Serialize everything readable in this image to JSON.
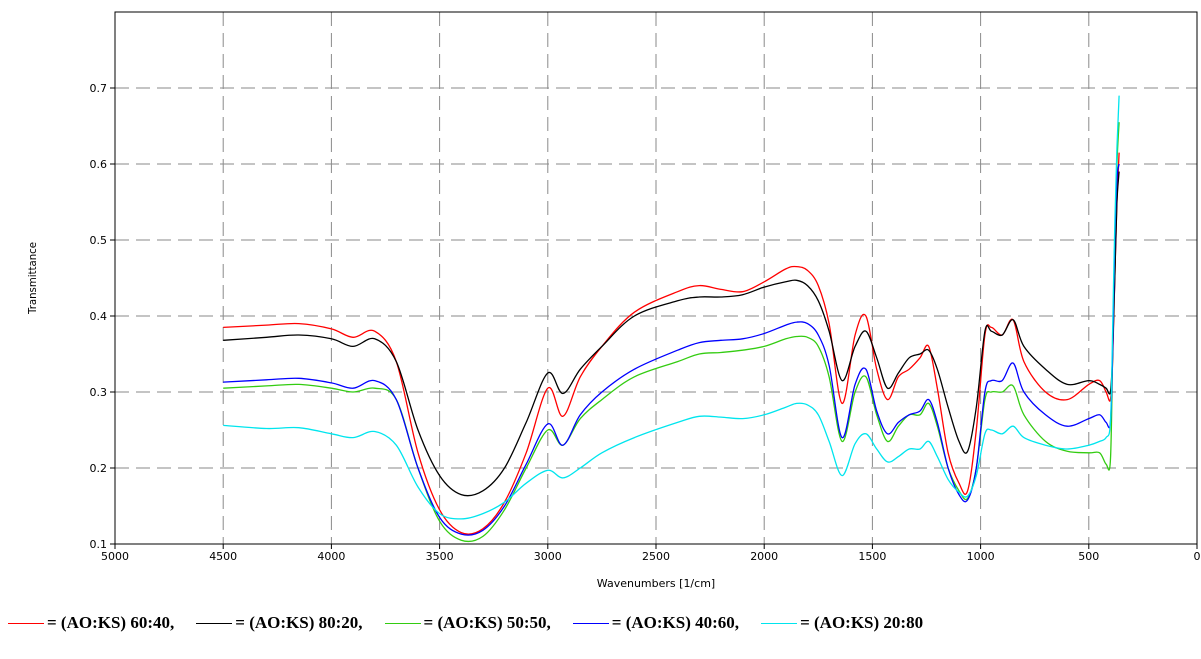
{
  "chart_data": {
    "type": "line",
    "xlabel": "Wavenumbers [1/cm]",
    "ylabel": "Transmittance",
    "xlim": [
      5000,
      0
    ],
    "ylim": [
      0.1,
      0.8
    ],
    "xticks": [
      "5000",
      "4500",
      "4000",
      "3500",
      "3000",
      "2500",
      "2000",
      "1500",
      "1000",
      "500",
      "0"
    ],
    "yticks": [
      "0.1",
      "0.2",
      "0.3",
      "0.4",
      "0.5",
      "0.6",
      "0.7"
    ],
    "grid": true,
    "legend_position": "bottom",
    "series": [
      {
        "name": "= (AO:KS) 60:40,",
        "color": "#ff0000",
        "x": [
          4500,
          4300,
          4150,
          4000,
          3900,
          3800,
          3700,
          3600,
          3500,
          3400,
          3300,
          3200,
          3100,
          3000,
          2930,
          2850,
          2750,
          2600,
          2400,
          2300,
          2200,
          2100,
          2000,
          1900,
          1850,
          1800,
          1750,
          1700,
          1640,
          1580,
          1530,
          1480,
          1430,
          1380,
          1330,
          1280,
          1240,
          1200,
          1150,
          1100,
          1060,
          1020,
          980,
          950,
          900,
          850,
          800,
          700,
          600,
          500,
          450,
          420,
          400,
          390,
          380,
          370,
          360
        ],
        "y": [
          0.385,
          0.388,
          0.39,
          0.383,
          0.372,
          0.38,
          0.34,
          0.22,
          0.145,
          0.115,
          0.12,
          0.155,
          0.22,
          0.305,
          0.268,
          0.32,
          0.36,
          0.405,
          0.432,
          0.44,
          0.435,
          0.432,
          0.445,
          0.462,
          0.465,
          0.46,
          0.44,
          0.39,
          0.285,
          0.375,
          0.4,
          0.33,
          0.29,
          0.32,
          0.33,
          0.345,
          0.36,
          0.305,
          0.22,
          0.18,
          0.17,
          0.25,
          0.375,
          0.385,
          0.375,
          0.395,
          0.34,
          0.3,
          0.29,
          0.31,
          0.315,
          0.3,
          0.29,
          0.34,
          0.45,
          0.55,
          0.615
        ]
      },
      {
        "name": "= (AO:KS) 80:20,",
        "color": "#000000",
        "x": [
          4500,
          4300,
          4150,
          4000,
          3900,
          3800,
          3700,
          3600,
          3500,
          3400,
          3300,
          3200,
          3100,
          3000,
          2930,
          2850,
          2750,
          2600,
          2400,
          2300,
          2200,
          2100,
          2000,
          1900,
          1850,
          1800,
          1750,
          1700,
          1640,
          1580,
          1530,
          1480,
          1430,
          1380,
          1330,
          1280,
          1240,
          1200,
          1150,
          1100,
          1060,
          1020,
          980,
          950,
          900,
          850,
          800,
          700,
          600,
          500,
          450,
          420,
          400,
          390,
          380,
          370,
          360
        ],
        "y": [
          0.368,
          0.372,
          0.375,
          0.37,
          0.36,
          0.37,
          0.34,
          0.25,
          0.19,
          0.165,
          0.17,
          0.2,
          0.26,
          0.325,
          0.298,
          0.33,
          0.36,
          0.4,
          0.42,
          0.425,
          0.425,
          0.428,
          0.438,
          0.445,
          0.447,
          0.44,
          0.42,
          0.38,
          0.315,
          0.36,
          0.38,
          0.345,
          0.305,
          0.325,
          0.345,
          0.35,
          0.355,
          0.33,
          0.28,
          0.235,
          0.222,
          0.28,
          0.38,
          0.38,
          0.375,
          0.395,
          0.36,
          0.33,
          0.31,
          0.315,
          0.31,
          0.305,
          0.3,
          0.35,
          0.45,
          0.55,
          0.59
        ]
      },
      {
        "name": "= (AO:KS) 50:50,",
        "color": "#33cc11",
        "x": [
          4500,
          4300,
          4150,
          4000,
          3900,
          3800,
          3700,
          3600,
          3500,
          3400,
          3300,
          3200,
          3100,
          3000,
          2930,
          2850,
          2750,
          2600,
          2400,
          2300,
          2200,
          2100,
          2000,
          1900,
          1850,
          1800,
          1750,
          1700,
          1640,
          1580,
          1530,
          1480,
          1430,
          1380,
          1330,
          1280,
          1240,
          1200,
          1150,
          1100,
          1060,
          1020,
          980,
          950,
          900,
          850,
          800,
          700,
          600,
          500,
          450,
          420,
          400,
          390,
          380,
          370,
          360
        ],
        "y": [
          0.305,
          0.308,
          0.31,
          0.305,
          0.3,
          0.305,
          0.29,
          0.2,
          0.13,
          0.105,
          0.11,
          0.145,
          0.2,
          0.25,
          0.23,
          0.265,
          0.29,
          0.32,
          0.34,
          0.35,
          0.352,
          0.355,
          0.36,
          0.37,
          0.373,
          0.372,
          0.36,
          0.32,
          0.235,
          0.3,
          0.32,
          0.27,
          0.235,
          0.255,
          0.27,
          0.27,
          0.285,
          0.255,
          0.2,
          0.17,
          0.16,
          0.2,
          0.29,
          0.3,
          0.3,
          0.308,
          0.27,
          0.235,
          0.222,
          0.22,
          0.22,
          0.205,
          0.21,
          0.35,
          0.5,
          0.6,
          0.655
        ]
      },
      {
        "name": "= (AO:KS) 40:60,",
        "color": "#0000ff",
        "x": [
          4500,
          4300,
          4150,
          4000,
          3900,
          3800,
          3700,
          3600,
          3500,
          3400,
          3300,
          3200,
          3100,
          3000,
          2930,
          2850,
          2750,
          2600,
          2400,
          2300,
          2200,
          2100,
          2000,
          1900,
          1850,
          1800,
          1750,
          1700,
          1640,
          1580,
          1530,
          1480,
          1430,
          1380,
          1330,
          1280,
          1240,
          1200,
          1150,
          1100,
          1060,
          1020,
          980,
          950,
          900,
          850,
          800,
          700,
          600,
          500,
          450,
          420,
          400,
          390,
          380,
          370,
          360
        ],
        "y": [
          0.313,
          0.316,
          0.318,
          0.312,
          0.305,
          0.315,
          0.29,
          0.2,
          0.135,
          0.113,
          0.118,
          0.15,
          0.205,
          0.258,
          0.23,
          0.27,
          0.3,
          0.33,
          0.355,
          0.365,
          0.368,
          0.37,
          0.377,
          0.388,
          0.392,
          0.39,
          0.375,
          0.335,
          0.24,
          0.31,
          0.33,
          0.275,
          0.245,
          0.26,
          0.27,
          0.275,
          0.29,
          0.26,
          0.2,
          0.165,
          0.158,
          0.2,
          0.3,
          0.315,
          0.315,
          0.338,
          0.3,
          0.27,
          0.255,
          0.265,
          0.27,
          0.26,
          0.26,
          0.35,
          0.5,
          0.58,
          0.6
        ]
      },
      {
        "name": "= (AO:KS) 20:80",
        "color": "#00e5ee",
        "x": [
          4500,
          4300,
          4150,
          4000,
          3900,
          3800,
          3700,
          3600,
          3500,
          3400,
          3300,
          3200,
          3100,
          3000,
          2930,
          2850,
          2750,
          2600,
          2400,
          2300,
          2200,
          2100,
          2000,
          1900,
          1850,
          1800,
          1750,
          1700,
          1640,
          1580,
          1530,
          1480,
          1430,
          1380,
          1330,
          1280,
          1240,
          1200,
          1150,
          1100,
          1060,
          1020,
          980,
          950,
          900,
          850,
          800,
          700,
          600,
          500,
          450,
          420,
          400,
          390,
          380,
          370,
          360
        ],
        "y": [
          0.256,
          0.252,
          0.253,
          0.245,
          0.24,
          0.248,
          0.23,
          0.175,
          0.14,
          0.133,
          0.14,
          0.155,
          0.18,
          0.197,
          0.187,
          0.2,
          0.22,
          0.24,
          0.26,
          0.268,
          0.267,
          0.265,
          0.27,
          0.28,
          0.285,
          0.283,
          0.27,
          0.235,
          0.19,
          0.232,
          0.245,
          0.225,
          0.208,
          0.215,
          0.225,
          0.225,
          0.235,
          0.215,
          0.185,
          0.168,
          0.163,
          0.19,
          0.245,
          0.25,
          0.245,
          0.255,
          0.24,
          0.23,
          0.225,
          0.23,
          0.235,
          0.24,
          0.26,
          0.38,
          0.52,
          0.62,
          0.69
        ]
      }
    ]
  }
}
